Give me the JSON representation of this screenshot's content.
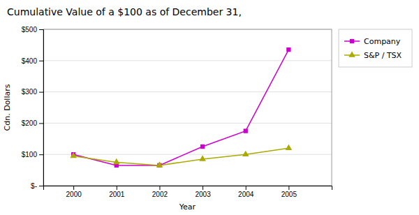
{
  "chart_data": {
    "type": "line",
    "title": "Cumulative Value of a $100 as of December 31,",
    "xlabel": "Year",
    "ylabel": "Cdn. Dollars",
    "x": [
      2000,
      2001,
      2002,
      2003,
      2004,
      2005
    ],
    "series": [
      {
        "name": "Company",
        "color": "#cc00cc",
        "marker": "square",
        "values": [
          100,
          65,
          65,
          125,
          175,
          435
        ]
      },
      {
        "name": "S&P / TSX",
        "color": "#aaaa00",
        "marker": "triangle",
        "values": [
          95,
          75,
          65,
          85,
          100,
          120
        ]
      }
    ],
    "xlim": [
      1999.3,
      2006.0
    ],
    "xticks": [
      2000,
      2001,
      2002,
      2003,
      2004,
      2005
    ],
    "ylim": [
      0,
      500
    ],
    "yticks": [
      {
        "value": 0,
        "label": "$-"
      },
      {
        "value": 100,
        "label": "$100"
      },
      {
        "value": 200,
        "label": "$200"
      },
      {
        "value": 300,
        "label": "$300"
      },
      {
        "value": 400,
        "label": "$400"
      },
      {
        "value": 500,
        "label": "$500"
      }
    ],
    "grid": true,
    "legend": "upper right"
  }
}
